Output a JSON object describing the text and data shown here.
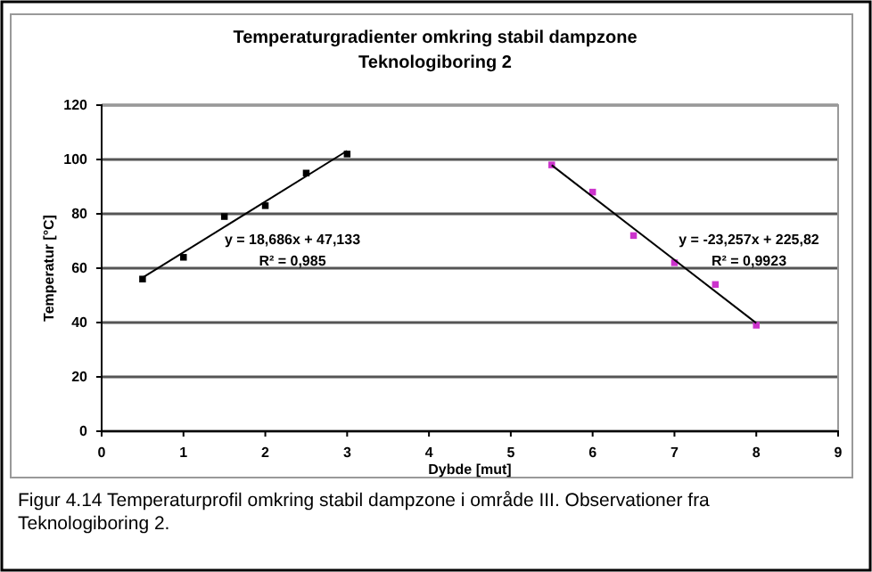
{
  "chart_data": {
    "type": "scatter",
    "title": "Temperaturgradienter omkring stabil dampzone",
    "subtitle": "Teknologiboring 2",
    "xlabel": "Dybde [mut]",
    "ylabel": "Temperatur [°C]",
    "xlim": [
      0,
      9
    ],
    "xticks": [
      0,
      1,
      2,
      3,
      4,
      5,
      6,
      7,
      8,
      9
    ],
    "ylim": [
      0,
      120
    ],
    "yticks": [
      0,
      20,
      40,
      60,
      80,
      100,
      120
    ],
    "grid": "y",
    "marker": "square",
    "series": [
      {
        "color": "#000000",
        "x": [
          0.5,
          1,
          1.5,
          2,
          2.5,
          3
        ],
        "values": [
          56,
          64,
          79,
          83,
          95,
          102
        ]
      },
      {
        "color": "#cc33cc",
        "x": [
          5.5,
          6,
          6.5,
          7,
          7.5,
          8
        ],
        "values": [
          98,
          88,
          72,
          62,
          54,
          39
        ]
      },
      {
        "type": "line",
        "marker": "none",
        "color": "#000000",
        "x": [
          0.5,
          3
        ],
        "values": [
          56.5,
          103.2
        ]
      },
      {
        "type": "line",
        "marker": "none",
        "color": "#000000",
        "x": [
          5.5,
          8
        ],
        "values": [
          97.9,
          39.8
        ]
      }
    ],
    "line_style": "solid",
    "annotations": [
      "y = 18,686x + 47,133",
      "R² = 0,985",
      "y = -23,257x + 225,82",
      "R² = 0,9923",
      "Figur 4.14 Temperaturprofil omkring stabil dampzone i område III. Observationer fra Teknologiboring 2."
    ]
  }
}
